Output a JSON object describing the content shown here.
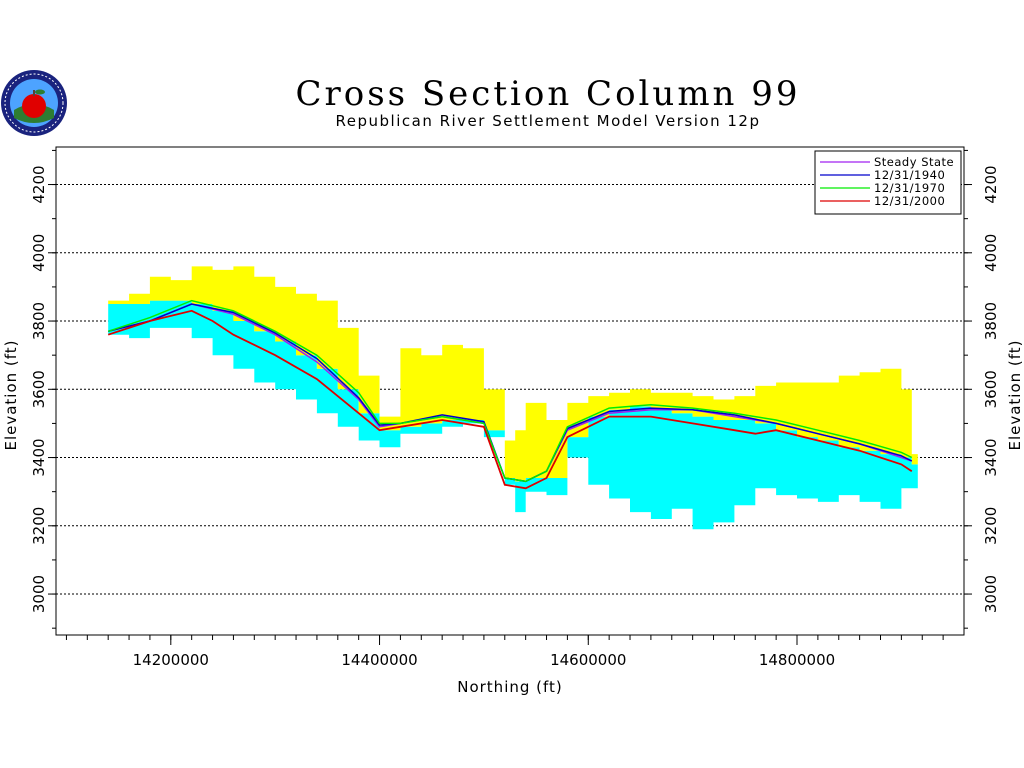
{
  "chart_data": {
    "type": "area",
    "title": "Cross Section Column 99",
    "subtitle": "Republican River Settlement Model Version 12p",
    "xlabel": "Northing (ft)",
    "ylabel": "Elevation (ft)",
    "xlim": [
      14090000,
      14960000
    ],
    "ylim": [
      2880000,
      4310000
    ],
    "xticks": [
      14200000,
      14400000,
      14600000,
      14800000
    ],
    "xtick_labels": [
      "14200000",
      "14400000",
      "14600000",
      "14800000"
    ],
    "yticks": [
      3000,
      3200,
      3400,
      3600,
      3800,
      4000,
      4200
    ],
    "ytick_labels": [
      "3000",
      "3200",
      "3400",
      "3600",
      "3800",
      "4000",
      "4200"
    ],
    "y_range": [
      2880,
      4310
    ],
    "grid": "horizontal dashed",
    "legend_position": "top-right",
    "colors": {
      "upper_layer": "#ffff00",
      "lower_layer": "#00ffff",
      "steady_state": "#a020f0",
      "y1940": "#0000cc",
      "y1970": "#00ee00",
      "y2000": "#dd0000"
    },
    "legend": [
      "Steady State",
      "12/31/1940",
      "12/31/1970",
      "12/31/2000"
    ],
    "layers": {
      "x": [
        14140000,
        14160000,
        14180000,
        14200000,
        14220000,
        14240000,
        14260000,
        14280000,
        14300000,
        14320000,
        14340000,
        14360000,
        14380000,
        14400000,
        14420000,
        14440000,
        14460000,
        14480000,
        14500000,
        14520000,
        14530000,
        14540000,
        14560000,
        14580000,
        14600000,
        14620000,
        14640000,
        14660000,
        14680000,
        14700000,
        14720000,
        14740000,
        14760000,
        14780000,
        14800000,
        14820000,
        14840000,
        14860000,
        14880000,
        14900000,
        14910000
      ],
      "upper_top": [
        3860,
        3880,
        3930,
        3920,
        3960,
        3950,
        3960,
        3930,
        3900,
        3880,
        3860,
        3780,
        3640,
        3520,
        3720,
        3700,
        3730,
        3720,
        3600,
        3450,
        3480,
        3560,
        3510,
        3560,
        3580,
        3590,
        3600,
        3590,
        3590,
        3580,
        3570,
        3580,
        3610,
        3620,
        3620,
        3620,
        3640,
        3650,
        3660,
        3600,
        3410
      ],
      "upper_bottom": [
        3850,
        3850,
        3860,
        3860,
        3850,
        3830,
        3800,
        3770,
        3740,
        3700,
        3660,
        3600,
        3530,
        3480,
        3490,
        3500,
        3510,
        3510,
        3480,
        3340,
        3330,
        3340,
        3340,
        3460,
        3520,
        3540,
        3550,
        3540,
        3530,
        3520,
        3510,
        3510,
        3500,
        3480,
        3460,
        3450,
        3430,
        3420,
        3410,
        3400,
        3380
      ],
      "lower_bottom": [
        3760,
        3750,
        3780,
        3780,
        3750,
        3700,
        3660,
        3620,
        3600,
        3570,
        3530,
        3490,
        3450,
        3430,
        3470,
        3470,
        3490,
        3500,
        3460,
        3320,
        3240,
        3300,
        3290,
        3400,
        3320,
        3280,
        3240,
        3220,
        3250,
        3190,
        3210,
        3260,
        3310,
        3290,
        3280,
        3270,
        3290,
        3270,
        3250,
        3310,
        3310
      ]
    },
    "series": [
      {
        "name": "Steady State",
        "x": [
          14140000,
          14180000,
          14220000,
          14260000,
          14300000,
          14340000,
          14380000,
          14400000,
          14420000,
          14460000,
          14500000,
          14520000,
          14540000,
          14560000,
          14580000,
          14620000,
          14660000,
          14700000,
          14740000,
          14780000,
          14820000,
          14860000,
          14900000,
          14910000
        ],
        "values": [
          3770,
          3800,
          3850,
          3820,
          3760,
          3680,
          3570,
          3490,
          3500,
          3520,
          3500,
          3340,
          3330,
          3360,
          3480,
          3530,
          3540,
          3540,
          3520,
          3500,
          3470,
          3440,
          3400,
          3390
        ]
      },
      {
        "name": "12/31/1940",
        "x": [
          14140000,
          14180000,
          14220000,
          14260000,
          14300000,
          14340000,
          14380000,
          14400000,
          14420000,
          14460000,
          14500000,
          14520000,
          14540000,
          14560000,
          14580000,
          14620000,
          14660000,
          14700000,
          14740000,
          14780000,
          14820000,
          14860000,
          14900000,
          14910000
        ],
        "values": [
          3770,
          3800,
          3850,
          3825,
          3765,
          3690,
          3575,
          3495,
          3500,
          3525,
          3505,
          3340,
          3330,
          3360,
          3485,
          3535,
          3545,
          3540,
          3525,
          3500,
          3470,
          3440,
          3405,
          3390
        ]
      },
      {
        "name": "12/31/1970",
        "x": [
          14140000,
          14180000,
          14220000,
          14260000,
          14300000,
          14340000,
          14380000,
          14400000,
          14420000,
          14460000,
          14500000,
          14520000,
          14540000,
          14560000,
          14580000,
          14620000,
          14660000,
          14700000,
          14740000,
          14780000,
          14820000,
          14860000,
          14900000,
          14910000
        ],
        "values": [
          3770,
          3810,
          3860,
          3830,
          3770,
          3700,
          3590,
          3500,
          3500,
          3520,
          3500,
          3340,
          3330,
          3360,
          3490,
          3545,
          3555,
          3545,
          3530,
          3510,
          3480,
          3450,
          3415,
          3400
        ]
      },
      {
        "name": "12/31/2000",
        "x": [
          14140000,
          14180000,
          14220000,
          14240000,
          14260000,
          14300000,
          14340000,
          14380000,
          14400000,
          14420000,
          14460000,
          14500000,
          14520000,
          14540000,
          14560000,
          14580000,
          14620000,
          14660000,
          14700000,
          14740000,
          14760000,
          14780000,
          14820000,
          14860000,
          14900000,
          14910000
        ],
        "values": [
          3760,
          3800,
          3830,
          3800,
          3760,
          3700,
          3630,
          3530,
          3480,
          3490,
          3510,
          3490,
          3320,
          3310,
          3340,
          3460,
          3520,
          3520,
          3500,
          3480,
          3470,
          3480,
          3450,
          3420,
          3380,
          3360
        ]
      }
    ]
  }
}
